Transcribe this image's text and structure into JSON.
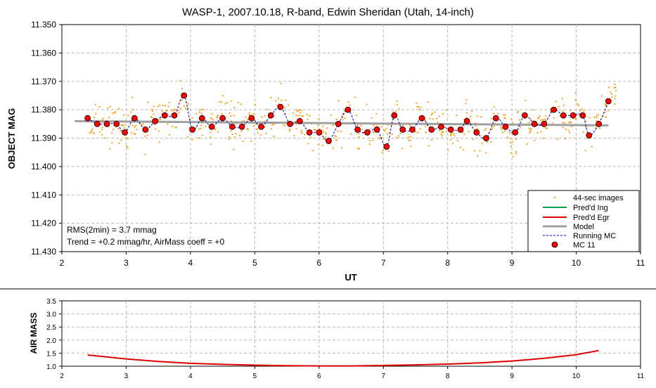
{
  "chart_data": [
    {
      "type": "scatter",
      "title": "WASP-1, 2007.10.18, R-band, Edwin Sheridan (Utah, 14-inch)",
      "xlabel": "UT",
      "ylabel": "OBJECT MAG",
      "xlim": [
        2,
        11
      ],
      "ylim": [
        11.35,
        11.43
      ],
      "y_inverted": true,
      "grid": true,
      "legend_position": "bottom-right",
      "x_ticks": [
        "2",
        "3",
        "4",
        "5",
        "6",
        "7",
        "8",
        "9",
        "10",
        "11"
      ],
      "y_ticks": [
        "11.350",
        "11.360",
        "11.370",
        "11.380",
        "11.390",
        "11.400",
        "11.410",
        "11.420",
        "11.430"
      ],
      "annotations": [
        "RMS(2min) = 3.7 mmag",
        "Trend = +0.2 mmag/hr, AirMass coeff = +0"
      ],
      "legend": [
        "44-sec images",
        "Pred'd Ing",
        "Pred'd Egr",
        "Model",
        "Running MC",
        "MC 11"
      ],
      "colors": {
        "images": "#ff9900",
        "ingress": "#00a050",
        "egress": "#e00000",
        "model": "#a0a0a0",
        "running": "#0000c0",
        "mc": "#ff0000"
      },
      "series": [
        {
          "name": "MC 11",
          "points": [
            [
              2.4,
              11.383
            ],
            [
              2.55,
              11.385
            ],
            [
              2.7,
              11.385
            ],
            [
              2.85,
              11.385
            ],
            [
              2.98,
              11.388
            ],
            [
              3.13,
              11.383
            ],
            [
              3.3,
              11.387
            ],
            [
              3.45,
              11.384
            ],
            [
              3.6,
              11.382
            ],
            [
              3.75,
              11.382
            ],
            [
              3.9,
              11.375
            ],
            [
              4.03,
              11.387
            ],
            [
              4.18,
              11.383
            ],
            [
              4.33,
              11.386
            ],
            [
              4.5,
              11.383
            ],
            [
              4.65,
              11.386
            ],
            [
              4.8,
              11.386
            ],
            [
              4.95,
              11.383
            ],
            [
              5.1,
              11.386
            ],
            [
              5.25,
              11.382
            ],
            [
              5.4,
              11.379
            ],
            [
              5.55,
              11.385
            ],
            [
              5.7,
              11.384
            ],
            [
              5.85,
              11.388
            ],
            [
              6.0,
              11.388
            ],
            [
              6.15,
              11.391
            ],
            [
              6.3,
              11.385
            ],
            [
              6.45,
              11.38
            ],
            [
              6.6,
              11.387
            ],
            [
              6.75,
              11.388
            ],
            [
              6.9,
              11.387
            ],
            [
              7.05,
              11.393
            ],
            [
              7.17,
              11.382
            ],
            [
              7.3,
              11.387
            ],
            [
              7.45,
              11.387
            ],
            [
              7.6,
              11.383
            ],
            [
              7.75,
              11.387
            ],
            [
              7.9,
              11.386
            ],
            [
              8.05,
              11.387
            ],
            [
              8.2,
              11.387
            ],
            [
              8.3,
              11.384
            ],
            [
              8.45,
              11.388
            ],
            [
              8.6,
              11.39
            ],
            [
              8.75,
              11.383
            ],
            [
              8.9,
              11.386
            ],
            [
              9.05,
              11.388
            ],
            [
              9.2,
              11.382
            ],
            [
              9.35,
              11.385
            ],
            [
              9.5,
              11.385
            ],
            [
              9.65,
              11.38
            ],
            [
              9.8,
              11.382
            ],
            [
              9.95,
              11.382
            ],
            [
              10.1,
              11.382
            ],
            [
              10.2,
              11.389
            ],
            [
              10.35,
              11.385
            ],
            [
              10.5,
              11.377
            ]
          ]
        },
        {
          "name": "Model",
          "points": [
            [
              2.2,
              11.384
            ],
            [
              10.5,
              11.3855
            ]
          ]
        }
      ]
    },
    {
      "type": "line",
      "xlabel": "",
      "ylabel": "AIR MASS",
      "xlim": [
        2,
        11
      ],
      "ylim": [
        1.0,
        3.5
      ],
      "grid": true,
      "x_ticks": [
        "2",
        "3",
        "4",
        "5",
        "6",
        "7",
        "8",
        "9",
        "10",
        "11"
      ],
      "y_ticks": [
        "1.0",
        "1.5",
        "2.0",
        "2.5",
        "3.0",
        "3.5"
      ],
      "series": [
        {
          "name": "",
          "points": [
            [
              2.4,
              1.43
            ],
            [
              3.0,
              1.28
            ],
            [
              3.5,
              1.18
            ],
            [
              4.0,
              1.11
            ],
            [
              4.5,
              1.07
            ],
            [
              5.0,
              1.04
            ],
            [
              5.5,
              1.02
            ],
            [
              6.0,
              1.01
            ],
            [
              6.5,
              1.01
            ],
            [
              7.0,
              1.03
            ],
            [
              7.5,
              1.05
            ],
            [
              8.0,
              1.08
            ],
            [
              8.5,
              1.13
            ],
            [
              9.0,
              1.2
            ],
            [
              9.5,
              1.3
            ],
            [
              10.0,
              1.44
            ],
            [
              10.35,
              1.6
            ]
          ]
        }
      ]
    }
  ]
}
